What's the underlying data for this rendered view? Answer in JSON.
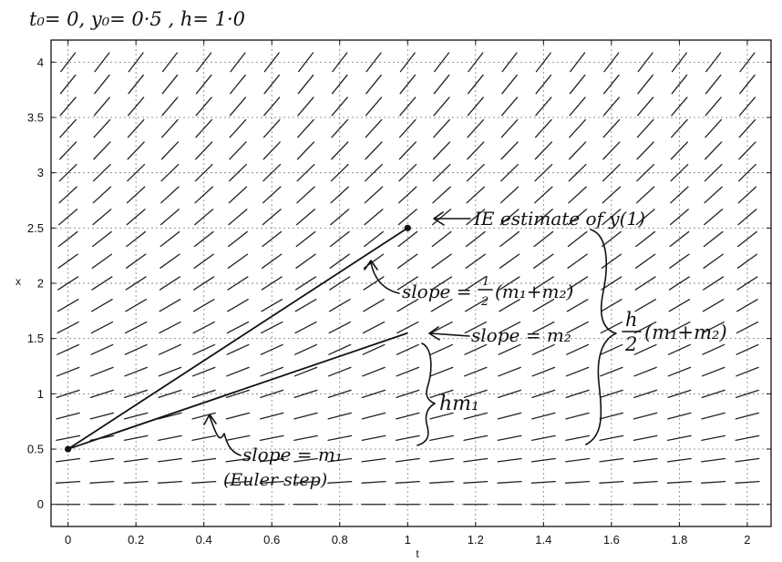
{
  "chart_data": {
    "type": "line",
    "title": "t₀= 0, y₀= 0·5 , h= 1·0",
    "xlabel": "t",
    "ylabel": "x",
    "xlim": [
      -0.05,
      2.07
    ],
    "ylim": [
      -0.2,
      4.2
    ],
    "xticks": [
      0,
      0.2,
      0.4,
      0.6,
      0.8,
      1,
      1.2,
      1.4,
      1.6,
      1.8,
      2
    ],
    "xtick_labels": [
      "0",
      "0.2",
      "0.4",
      "0.6",
      "0.8",
      "1",
      "1.2",
      "1.4",
      "1.6",
      "1.8",
      "2"
    ],
    "yticks": [
      0,
      0.5,
      1,
      1.5,
      2,
      2.5,
      3,
      3.5,
      4
    ],
    "ytick_labels": [
      "0",
      "0.5",
      "1",
      "1.5",
      "2",
      "2.5",
      "3",
      "3.5",
      "4"
    ],
    "grid": true,
    "direction_field": {
      "t_values": [
        0,
        0.1,
        0.2,
        0.3,
        0.4,
        0.5,
        0.6,
        0.7,
        0.8,
        0.9,
        1.0,
        1.1,
        1.2,
        1.3,
        1.4,
        1.5,
        1.6,
        1.7,
        1.8,
        1.9,
        2.0
      ],
      "x_values": [
        0,
        0.2,
        0.4,
        0.6,
        0.8,
        1.0,
        1.2,
        1.4,
        1.6,
        1.8,
        2.0,
        2.2,
        2.4,
        2.6,
        2.8,
        3.0,
        3.2,
        3.4,
        3.6,
        3.8,
        4.0
      ]
    },
    "series": [
      {
        "x": [
          0,
          1
        ],
        "y": [
          0.5,
          1.55
        ]
      },
      {
        "x": [
          0,
          1
        ],
        "y": [
          0.5,
          2.5
        ]
      }
    ],
    "points": [
      {
        "x": 0,
        "y": 0.5
      },
      {
        "x": 1,
        "y": 2.5
      }
    ],
    "annotations": {
      "ie_estimate": "IE estimate of y(1)",
      "slope_avg_prefix": "slope = ",
      "frac_num": "1",
      "frac_den": "2",
      "slope_avg_suffix": "(m₁+m₂)",
      "slope_m2": "slope = m₂",
      "h_over_2_num": "h",
      "h_over_2_den": "2",
      "h_over_2_suffix": "(m₁+m₂)",
      "hm1": "hm₁",
      "slope_m1": "slope = m₁",
      "euler_step": "(Euler step)"
    }
  }
}
